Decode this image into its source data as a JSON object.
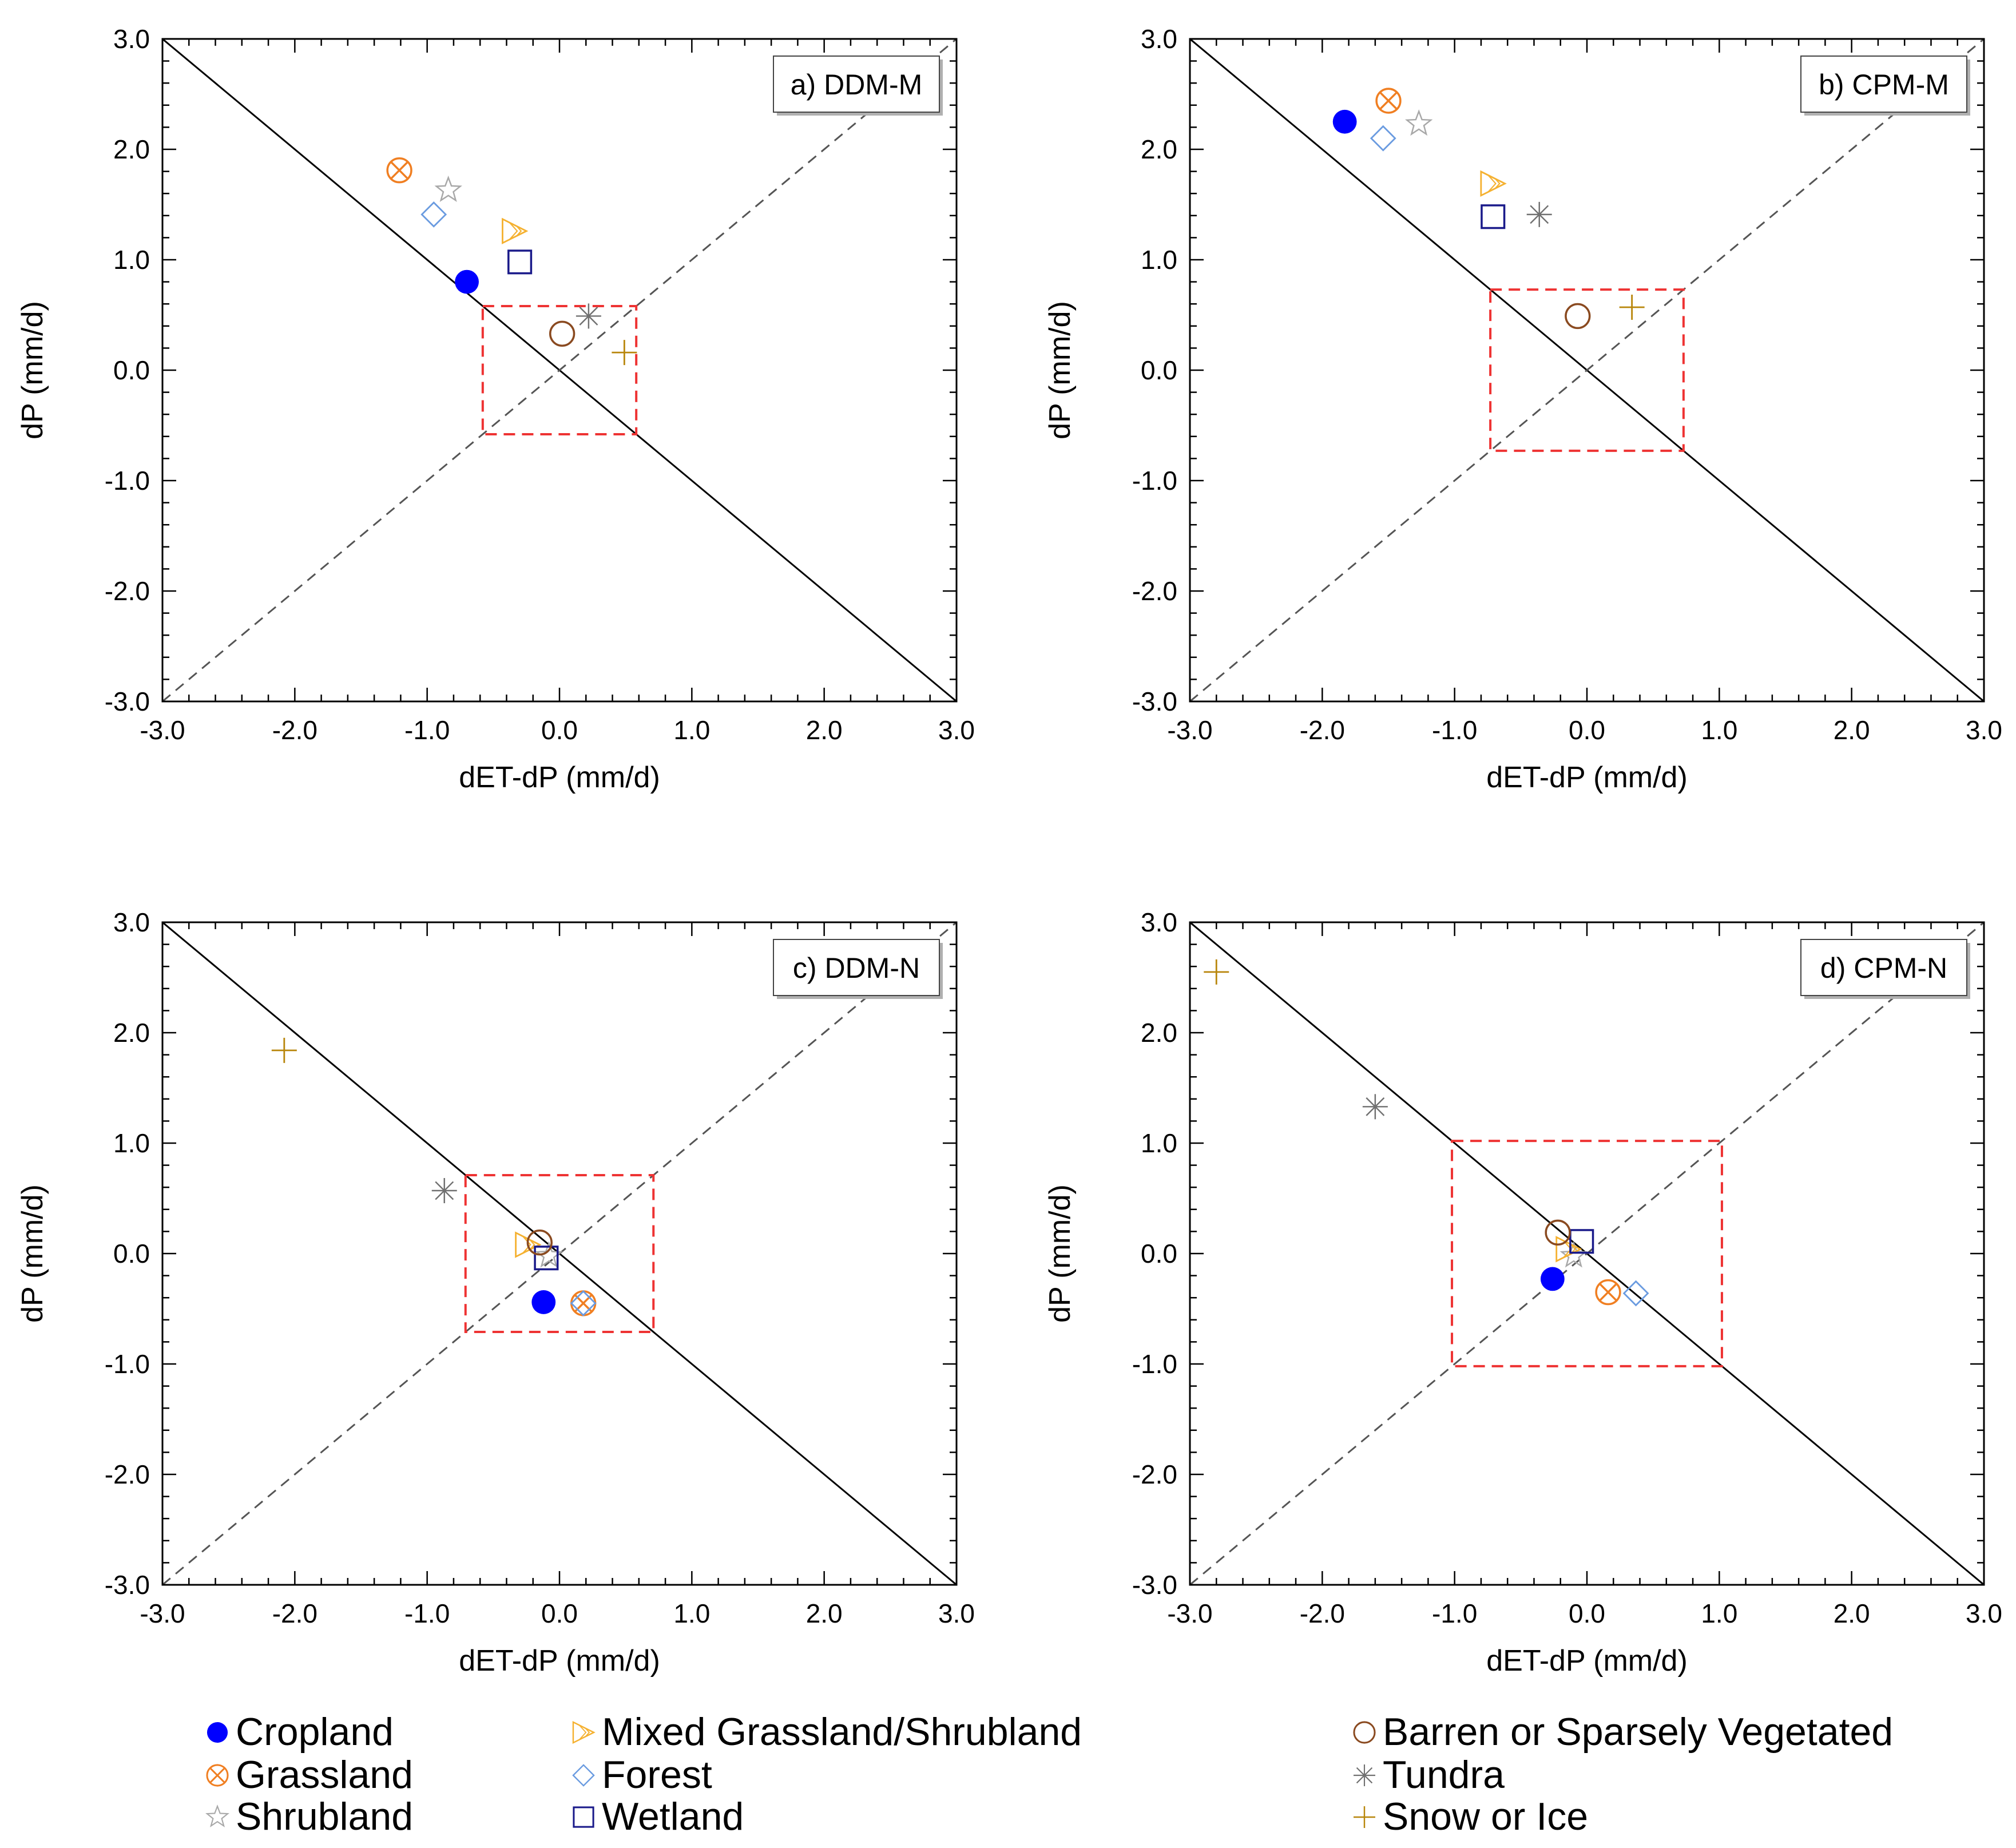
{
  "chart_data": {
    "type": "scatter",
    "layout": "2x2 grid",
    "panels": [
      {
        "label": "a) DDM-M",
        "xlabel": "dET-dP (mm/d)",
        "ylabel": "dP (mm/d)",
        "xlim": [
          -3.0,
          3.0
        ],
        "ylim": [
          -3.0,
          3.0
        ],
        "xticks": [
          "-3.0",
          "-2.0",
          "-1.0",
          "0.0",
          "1.0",
          "2.0",
          "3.0"
        ],
        "yticks": [
          "-3.0",
          "-2.0",
          "-1.0",
          "0.0",
          "1.0",
          "2.0",
          "3.0"
        ],
        "box_halfwidth": 0.58,
        "box_halfheight": 0.58,
        "points": [
          {
            "name": "Cropland",
            "x": -0.7,
            "y": 0.8
          },
          {
            "name": "Grassland",
            "x": -1.21,
            "y": 1.81
          },
          {
            "name": "Shrubland",
            "x": -0.84,
            "y": 1.63
          },
          {
            "name": "Mixed Grassland/Shrubland",
            "x": -0.34,
            "y": 1.26
          },
          {
            "name": "Forest",
            "x": -0.95,
            "y": 1.41
          },
          {
            "name": "Wetland",
            "x": -0.3,
            "y": 0.98
          },
          {
            "name": "Barren or Sparsely Vegetated",
            "x": 0.02,
            "y": 0.33
          },
          {
            "name": "Tundra",
            "x": 0.22,
            "y": 0.49
          },
          {
            "name": "Snow or Ice",
            "x": 0.49,
            "y": 0.16
          }
        ]
      },
      {
        "label": "b) CPM-M",
        "xlabel": "dET-dP (mm/d)",
        "ylabel": "dP (mm/d)",
        "xlim": [
          -3.0,
          3.0
        ],
        "ylim": [
          -3.0,
          3.0
        ],
        "xticks": [
          "-3.0",
          "-2.0",
          "-1.0",
          "0.0",
          "1.0",
          "2.0",
          "3.0"
        ],
        "yticks": [
          "-3.0",
          "-2.0",
          "-1.0",
          "0.0",
          "1.0",
          "2.0",
          "3.0"
        ],
        "box_halfwidth": 0.73,
        "box_halfheight": 0.73,
        "points": [
          {
            "name": "Cropland",
            "x": -1.83,
            "y": 2.25
          },
          {
            "name": "Grassland",
            "x": -1.5,
            "y": 2.44
          },
          {
            "name": "Shrubland",
            "x": -1.27,
            "y": 2.23
          },
          {
            "name": "Mixed Grassland/Shrubland",
            "x": -0.71,
            "y": 1.69
          },
          {
            "name": "Forest",
            "x": -1.54,
            "y": 2.1
          },
          {
            "name": "Wetland",
            "x": -0.71,
            "y": 1.39
          },
          {
            "name": "Barren or Sparsely Vegetated",
            "x": -0.07,
            "y": 0.49
          },
          {
            "name": "Tundra",
            "x": -0.36,
            "y": 1.41
          },
          {
            "name": "Snow or Ice",
            "x": 0.34,
            "y": 0.57
          }
        ]
      },
      {
        "label": "c) DDM-N",
        "xlabel": "dET-dP (mm/d)",
        "ylabel": "dP (mm/d)",
        "xlim": [
          -3.0,
          3.0
        ],
        "ylim": [
          -3.0,
          3.0
        ],
        "xticks": [
          "-3.0",
          "-2.0",
          "-1.0",
          "0.0",
          "1.0",
          "2.0",
          "3.0"
        ],
        "yticks": [
          "-3.0",
          "-2.0",
          "-1.0",
          "0.0",
          "1.0",
          "2.0",
          "3.0"
        ],
        "box_halfwidth": 0.71,
        "box_halfheight": 0.71,
        "points": [
          {
            "name": "Cropland",
            "x": -0.12,
            "y": -0.44
          },
          {
            "name": "Grassland",
            "x": 0.18,
            "y": -0.45
          },
          {
            "name": "Shrubland",
            "x": -0.08,
            "y": -0.02
          },
          {
            "name": "Mixed Grassland/Shrubland",
            "x": -0.24,
            "y": 0.08
          },
          {
            "name": "Forest",
            "x": 0.18,
            "y": -0.45
          },
          {
            "name": "Wetland",
            "x": -0.1,
            "y": -0.04
          },
          {
            "name": "Barren or Sparsely Vegetated",
            "x": -0.15,
            "y": 0.1
          },
          {
            "name": "Tundra",
            "x": -0.87,
            "y": 0.57
          },
          {
            "name": "Snow or Ice",
            "x": -2.08,
            "y": 1.84
          }
        ]
      },
      {
        "label": "d) CPM-N",
        "xlabel": "dET-dP (mm/d)",
        "ylabel": "dP (mm/d)",
        "xlim": [
          -3.0,
          3.0
        ],
        "ylim": [
          -3.0,
          3.0
        ],
        "xticks": [
          "-3.0",
          "-2.0",
          "-1.0",
          "0.0",
          "1.0",
          "2.0",
          "3.0"
        ],
        "yticks": [
          "-3.0",
          "-2.0",
          "-1.0",
          "0.0",
          "1.0",
          "2.0",
          "3.0"
        ],
        "box_halfwidth": 1.02,
        "box_halfheight": 1.02,
        "points": [
          {
            "name": "Cropland",
            "x": -0.26,
            "y": -0.23
          },
          {
            "name": "Grassland",
            "x": 0.16,
            "y": -0.35
          },
          {
            "name": "Shrubland",
            "x": -0.1,
            "y": -0.02
          },
          {
            "name": "Mixed Grassland/Shrubland",
            "x": -0.14,
            "y": 0.04
          },
          {
            "name": "Forest",
            "x": 0.37,
            "y": -0.36
          },
          {
            "name": "Wetland",
            "x": -0.04,
            "y": 0.11
          },
          {
            "name": "Barren or Sparsely Vegetated",
            "x": -0.22,
            "y": 0.19
          },
          {
            "name": "Tundra",
            "x": -1.6,
            "y": 1.33
          },
          {
            "name": "Snow or Ice",
            "x": -2.8,
            "y": 2.55
          }
        ]
      }
    ],
    "series": [
      {
        "name": "Cropland",
        "marker": "filled-circle",
        "color": "#0000ff"
      },
      {
        "name": "Grassland",
        "marker": "circle-x",
        "color": "#f07f22"
      },
      {
        "name": "Shrubland",
        "marker": "star",
        "color": "#a8a8a8"
      },
      {
        "name": "Mixed Grassland/Shrubland",
        "marker": "hatched-triangle",
        "color": "#f5b130"
      },
      {
        "name": "Forest",
        "marker": "diamond",
        "color": "#6a9be0"
      },
      {
        "name": "Wetland",
        "marker": "square",
        "color": "#1a1a8a"
      },
      {
        "name": "Barren or Sparsely Vegetated",
        "marker": "open-circle",
        "color": "#8a4a20"
      },
      {
        "name": "Tundra",
        "marker": "asterisk",
        "color": "#707070"
      },
      {
        "name": "Snow or Ice",
        "marker": "plus",
        "color": "#b8860b"
      }
    ],
    "colors": {
      "box": "#ee3333",
      "reference_line": "#000000",
      "reference_dashed": "#555555"
    }
  }
}
